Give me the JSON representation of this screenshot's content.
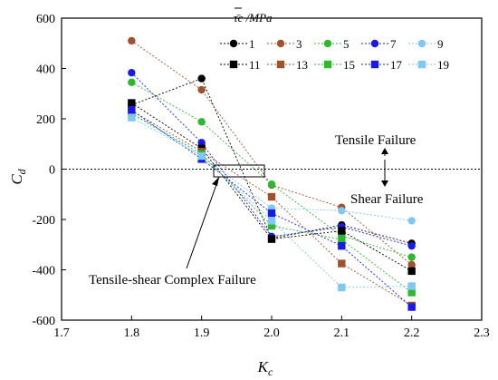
{
  "chart_data": {
    "type": "scatter",
    "x": [
      1.8,
      1.9,
      2.0,
      2.1,
      2.2
    ],
    "xlim": [
      1.7,
      2.3
    ],
    "ylim": [
      -600,
      600
    ],
    "xticks": [
      "1.7",
      "1.8",
      "1.9",
      "2.0",
      "2.1",
      "2.2",
      "2.3"
    ],
    "yticks": [
      "-600",
      "-400",
      "-200",
      "0",
      "200",
      "400",
      "600"
    ],
    "grid": false,
    "lines": "dashed",
    "legend_position": "top-right",
    "legend_title": "τ̄c /MPa",
    "xlabel_main": "K",
    "xlabel_sub": "c",
    "ylabel_main": "C",
    "ylabel_sub": "d",
    "reference_line": {
      "y": 0,
      "style": "dotted"
    },
    "series": [
      {
        "name": "1",
        "color": "#000000",
        "marker": "circle",
        "values": [
          255,
          360,
          -275,
          -222,
          -295
        ]
      },
      {
        "name": "3",
        "color": "#a0522d",
        "marker": "circle",
        "values": [
          510,
          315,
          -63,
          -152,
          -380
        ]
      },
      {
        "name": "5",
        "color": "#2db82d",
        "marker": "circle",
        "values": [
          345,
          188,
          -60,
          -265,
          -350
        ]
      },
      {
        "name": "7",
        "color": "#1a1ae6",
        "marker": "circle",
        "values": [
          383,
          105,
          -268,
          -230,
          -305
        ]
      },
      {
        "name": "9",
        "color": "#7ec8f2",
        "marker": "circle",
        "values": [
          220,
          52,
          -155,
          -165,
          -205
        ]
      },
      {
        "name": "11",
        "color": "#000000",
        "marker": "square",
        "values": [
          263,
          82,
          -278,
          -245,
          -405
        ]
      },
      {
        "name": "13",
        "color": "#a0522d",
        "marker": "square",
        "values": [
          232,
          70,
          -110,
          -375,
          -542
        ]
      },
      {
        "name": "15",
        "color": "#2db82d",
        "marker": "square",
        "values": [
          222,
          60,
          -225,
          -280,
          -490
        ]
      },
      {
        "name": "17",
        "color": "#1a1ae6",
        "marker": "square",
        "values": [
          235,
          40,
          -175,
          -305,
          -548
        ]
      },
      {
        "name": "19",
        "color": "#7ec8f2",
        "marker": "square",
        "values": [
          205,
          52,
          -205,
          -470,
          -465
        ]
      }
    ],
    "annotations": {
      "tensile": "Tensile Failure",
      "shear": "Shear Failure",
      "complex": "Tensile-shear Complex Failure"
    }
  }
}
